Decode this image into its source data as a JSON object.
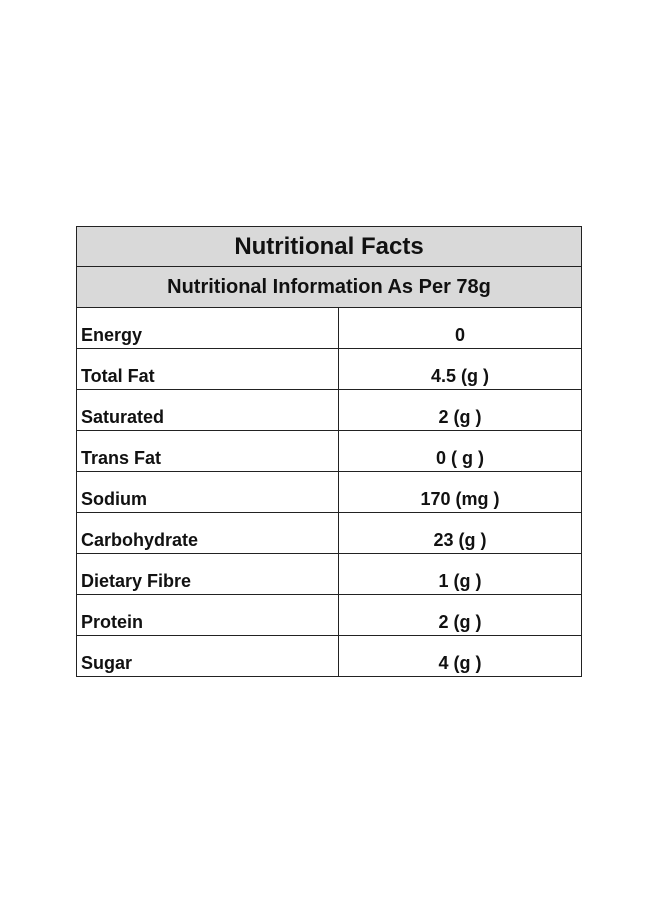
{
  "table": {
    "title": "Nutritional Facts",
    "subtitle": "Nutritional Information As Per 78g",
    "rows": [
      {
        "label": "Energy",
        "value": "0"
      },
      {
        "label": "Total Fat",
        "value": "4.5 (g )"
      },
      {
        "label": "Saturated",
        "value": "2 (g )"
      },
      {
        "label": "Trans Fat",
        "value": "0 ( g )"
      },
      {
        "label": "Sodium",
        "value": "170 (mg )"
      },
      {
        "label": "Carbohydrate",
        "value": "23 (g )"
      },
      {
        "label": "Dietary Fibre",
        "value": "1 (g )"
      },
      {
        "label": "Protein",
        "value": "2 (g )"
      },
      {
        "label": "Sugar",
        "value": "4 (g )"
      }
    ]
  }
}
